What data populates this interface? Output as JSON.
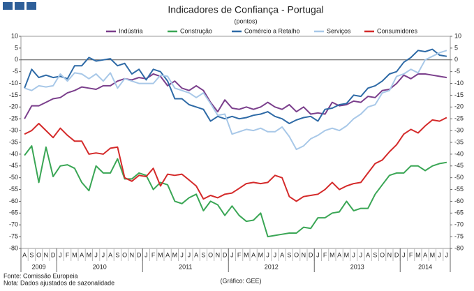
{
  "chart_data": {
    "type": "line",
    "title": "Indicadores de Confiança - Portugal",
    "subtitle": "(pontos)",
    "categories": [
      "A",
      "S",
      "O",
      "N",
      "D",
      "J",
      "F",
      "M",
      "A",
      "M",
      "J",
      "J",
      "A",
      "S",
      "O",
      "N",
      "D",
      "J",
      "F",
      "M",
      "A",
      "M",
      "J",
      "J",
      "A",
      "S",
      "O",
      "N",
      "D",
      "J",
      "F",
      "M",
      "A",
      "M",
      "J",
      "J",
      "A",
      "S",
      "O",
      "N",
      "D",
      "J",
      "F",
      "M",
      "A",
      "M",
      "J",
      "J",
      "A",
      "S",
      "O",
      "N",
      "D",
      "J",
      "F",
      "M",
      "A",
      "M",
      "J",
      "J"
    ],
    "years": [
      "2009",
      "2010",
      "2011",
      "2012",
      "2013",
      "2014"
    ],
    "series": [
      {
        "name": "Indústria",
        "color": "#7b3f8c",
        "values": [
          -25,
          -19.5,
          -19.5,
          -18,
          -16.5,
          -16,
          -14,
          -13,
          -11.5,
          -12,
          -12.5,
          -11,
          -11,
          -9,
          -8,
          -8.5,
          -7.5,
          -8,
          -6,
          -7,
          -11,
          -9,
          -12,
          -13,
          -11,
          -13,
          -18,
          -22,
          -17,
          -20.5,
          -21,
          -20,
          -21,
          -20,
          -18,
          -20,
          -21,
          -19,
          -22,
          -20,
          -23,
          -22.5,
          -23,
          -18,
          -19.5,
          -19,
          -17.5,
          -18,
          -15.5,
          -16,
          -13,
          -12.5,
          -10,
          -6.5,
          -8,
          -6,
          -6,
          -6.5,
          -7,
          -7.5
        ]
      },
      {
        "name": "Construção",
        "color": "#3aa655",
        "values": [
          -40.5,
          -36.5,
          -52,
          -37,
          -49.5,
          -45,
          -44.5,
          -46,
          -52,
          -55.5,
          -45,
          -48,
          -48,
          -42,
          -50.5,
          -50.5,
          -48,
          -49,
          -55,
          -52,
          -53,
          -60,
          -61,
          -58.5,
          -57,
          -64,
          -60,
          -61.5,
          -66,
          -62,
          -66,
          -68.5,
          -68,
          -65,
          -75,
          -74.5,
          -74,
          -73.5,
          -73.5,
          -71,
          -71.5,
          -67,
          -67,
          -65,
          -64.5,
          -60,
          -64,
          -63,
          -63,
          -57,
          -53,
          -49,
          -48,
          -48,
          -45,
          -45,
          -47,
          -45,
          -44,
          -43.5
        ]
      },
      {
        "name": "Comércio a Retalho",
        "color": "#2e6aa6",
        "values": [
          -12,
          -4,
          -7.5,
          -6.5,
          -7.5,
          -7,
          -8,
          -2.5,
          -2.5,
          1,
          -0.5,
          0,
          0.5,
          -2.5,
          -1.5,
          -6,
          -4,
          -8.5,
          -4,
          -5,
          -9,
          -16.5,
          -16.5,
          -19,
          -20,
          -21,
          -26,
          -24,
          -25,
          -24,
          -25,
          -24.5,
          -23.5,
          -23,
          -22,
          -24,
          -25,
          -27,
          -25.5,
          -24.5,
          -24,
          -26,
          -21,
          -20.5,
          -19,
          -18.5,
          -15,
          -15.5,
          -12,
          -11,
          -9,
          -6,
          -5,
          -1,
          1,
          4,
          3.5,
          4.5,
          2,
          1.5
        ]
      },
      {
        "name": "Serviços",
        "color": "#a8c8e8",
        "values": [
          -12,
          -13,
          -11,
          -11.5,
          -11,
          -6,
          -9,
          -5.5,
          -6,
          -8,
          -6,
          -9,
          -5.5,
          -12,
          -8,
          -9,
          -10,
          -10,
          -10,
          -6.5,
          -7,
          -12,
          -13,
          -14,
          -16,
          -14,
          -18.5,
          -23.5,
          -23,
          -31.5,
          -30.5,
          -29.5,
          -30,
          -29,
          -30.5,
          -30.5,
          -28.5,
          -32.5,
          -38,
          -36.5,
          -33.5,
          -32,
          -30,
          -29,
          -30,
          -28,
          -25,
          -23,
          -20,
          -19,
          -14,
          -13,
          -7,
          -6,
          -4,
          -5.5,
          0,
          1.5,
          3,
          4
        ]
      },
      {
        "name": "Consumidores",
        "color": "#d42a2a",
        "values": [
          -31.5,
          -30,
          -27,
          -30,
          -33,
          -29,
          -32,
          -34.5,
          -34.5,
          -40,
          -39.5,
          -40,
          -37.5,
          -37,
          -50,
          -51.5,
          -49,
          -49.5,
          -46,
          -53.5,
          -48.5,
          -49,
          -48.5,
          -51,
          -53.5,
          -59,
          -57.5,
          -58.5,
          -57,
          -56.5,
          -54.5,
          -52.5,
          -52,
          -52.5,
          -52,
          -49,
          -50,
          -58,
          -60,
          -58,
          -57.5,
          -57,
          -55,
          -52,
          -55,
          -53.5,
          -52.5,
          -52,
          -48,
          -44,
          -42.5,
          -39,
          -36,
          -31.5,
          -29.5,
          -31,
          -28,
          -25.5,
          -26,
          -24.5
        ]
      }
    ],
    "ylim": [
      -80,
      10
    ],
    "yticks": [
      -80,
      -75,
      -70,
      -65,
      -60,
      -55,
      -50,
      -45,
      -40,
      -35,
      -30,
      -25,
      -20,
      -15,
      -10,
      -5,
      0,
      5,
      10
    ],
    "grid": false,
    "legend": "top",
    "source": "Fonte: Comissão Europeia",
    "note": "Nota: Dados ajustados de sazonalidade",
    "credit": "(Gráfico: GEE)"
  }
}
